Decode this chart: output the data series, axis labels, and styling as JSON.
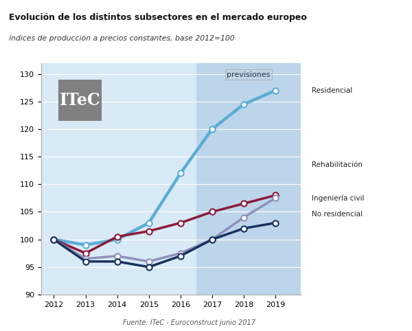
{
  "title": "Evolución de los distintos subsectores en el mercado europeo",
  "subtitle": "índices de producción a precios constantes, base 2012=100",
  "source": "Fuente: ITeC - Euroconstruct junio 2017",
  "previsiones_label": "previsiones",
  "previsiones_start": 2016.5,
  "years": [
    2012,
    2013,
    2014,
    2015,
    2016,
    2017,
    2018,
    2019
  ],
  "series_order": [
    "Residencial",
    "Rehabilitación",
    "Ingeniería civil",
    "No residencial"
  ],
  "series": {
    "Residencial": {
      "values": [
        100,
        99,
        100,
        103,
        112,
        120,
        124.5,
        127
      ],
      "color": "#5BACD6",
      "linewidth": 3.2
    },
    "Rehabilitación": {
      "values": [
        100,
        97.5,
        100.5,
        101.5,
        103,
        105,
        106.5,
        108
      ],
      "color": "#8B1A3A",
      "linewidth": 2.5
    },
    "Ingeniería civil": {
      "values": [
        100,
        96.5,
        97,
        96,
        97.5,
        100,
        104,
        107.5
      ],
      "color": "#9090BB",
      "linewidth": 2.5
    },
    "No residencial": {
      "values": [
        100,
        96,
        96,
        95,
        97,
        100,
        102,
        103
      ],
      "color": "#1A3060",
      "linewidth": 2.5
    }
  },
  "ylim": [
    90,
    132
  ],
  "yticks": [
    90,
    95,
    100,
    105,
    110,
    115,
    120,
    125,
    130
  ],
  "xlim": [
    2011.6,
    2019.8
  ],
  "xticks": [
    2012,
    2013,
    2014,
    2015,
    2016,
    2017,
    2018,
    2019
  ],
  "bg_color_left": "#D8EAF5",
  "bg_color_right": "#BDD5EA",
  "header_bg": "#C8C8C8",
  "itec_box_color": "#808080",
  "marker_face": "#FFFFFF",
  "marker_edge_width": 1.5,
  "marker_size": 6,
  "label_info": {
    "Residencial": {
      "y_line": 127.0,
      "y_label": 127.0,
      "has_arrow": false
    },
    "Rehabilitación": {
      "y_line": 108.0,
      "y_label": 113.5,
      "has_arrow": true
    },
    "Ingeniería civil": {
      "y_line": 104.5,
      "y_label": 107.5,
      "has_arrow": true
    },
    "No residencial": {
      "y_line": 103.0,
      "y_label": 104.5,
      "has_arrow": false
    }
  }
}
